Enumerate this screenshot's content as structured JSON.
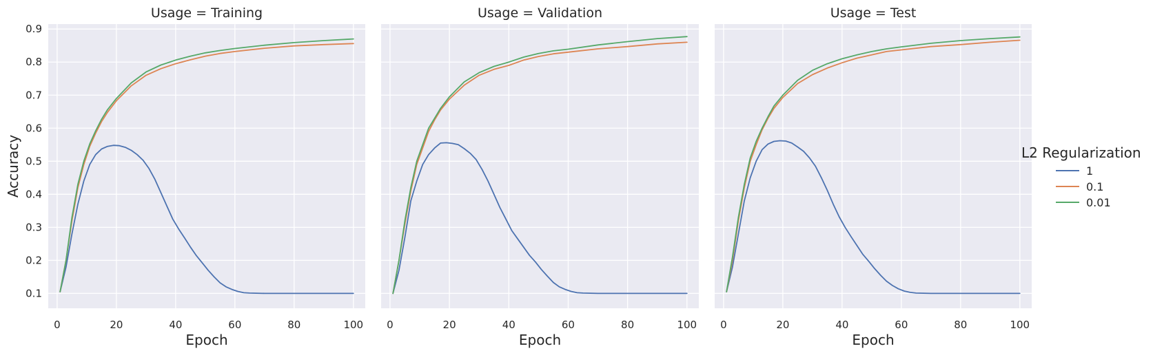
{
  "chart_data": {
    "type": "line",
    "facet_label": "Usage",
    "xlabel": "Epoch",
    "ylabel": "Accuracy",
    "xlim": [
      -3,
      104
    ],
    "ylim": [
      0.055,
      0.915
    ],
    "xticks": [
      0,
      20,
      40,
      60,
      80,
      100
    ],
    "yticks": [
      0.1,
      0.2,
      0.3,
      0.4,
      0.5,
      0.6,
      0.7,
      0.8,
      0.9
    ],
    "grid": true,
    "legend": {
      "title": "L2 Regularization",
      "placement": "right",
      "entries": [
        {
          "label": "1",
          "color": "#4c72b0"
        },
        {
          "label": "0.1",
          "color": "#dd8452"
        },
        {
          "label": "0.01",
          "color": "#55a868"
        }
      ]
    },
    "panels": [
      {
        "title": "Usage = Training",
        "series": [
          {
            "name": "1",
            "color": "#4c72b0",
            "x": [
              1,
              3,
              5,
              7,
              9,
              11,
              13,
              15,
              17,
              19,
              21,
              23,
              25,
              27,
              29,
              31,
              33,
              35,
              37,
              39,
              41,
              43,
              45,
              47,
              49,
              51,
              53,
              55,
              57,
              59,
              61,
              63,
              65,
              70,
              75,
              80,
              85,
              90,
              95,
              100
            ],
            "y": [
              0.105,
              0.18,
              0.28,
              0.37,
              0.44,
              0.49,
              0.52,
              0.537,
              0.545,
              0.548,
              0.547,
              0.542,
              0.533,
              0.52,
              0.503,
              0.478,
              0.445,
              0.405,
              0.365,
              0.325,
              0.295,
              0.268,
              0.24,
              0.214,
              0.192,
              0.17,
              0.15,
              0.132,
              0.12,
              0.112,
              0.106,
              0.102,
              0.101,
              0.1,
              0.1,
              0.1,
              0.1,
              0.1,
              0.1,
              0.1
            ]
          },
          {
            "name": "0.1",
            "color": "#dd8452",
            "x": [
              1,
              3,
              5,
              7,
              9,
              11,
              13,
              15,
              17,
              20,
              25,
              30,
              35,
              40,
              45,
              50,
              55,
              60,
              70,
              80,
              90,
              100
            ],
            "y": [
              0.105,
              0.2,
              0.32,
              0.42,
              0.49,
              0.545,
              0.585,
              0.62,
              0.648,
              0.683,
              0.728,
              0.76,
              0.78,
              0.795,
              0.807,
              0.818,
              0.826,
              0.832,
              0.842,
              0.849,
              0.853,
              0.856
            ]
          },
          {
            "name": "0.01",
            "color": "#55a868",
            "x": [
              1,
              3,
              5,
              7,
              9,
              11,
              13,
              15,
              17,
              20,
              25,
              30,
              35,
              40,
              45,
              50,
              55,
              60,
              70,
              80,
              90,
              100
            ],
            "y": [
              0.105,
              0.2,
              0.33,
              0.43,
              0.5,
              0.552,
              0.592,
              0.627,
              0.656,
              0.69,
              0.737,
              0.77,
              0.791,
              0.806,
              0.818,
              0.828,
              0.835,
              0.841,
              0.851,
              0.859,
              0.865,
              0.87
            ]
          }
        ]
      },
      {
        "title": "Usage = Validation",
        "series": [
          {
            "name": "1",
            "color": "#4c72b0",
            "x": [
              1,
              3,
              5,
              7,
              9,
              11,
              13,
              15,
              17,
              19,
              21,
              23,
              25,
              27,
              29,
              31,
              33,
              35,
              37,
              39,
              41,
              43,
              45,
              47,
              49,
              51,
              53,
              55,
              57,
              59,
              61,
              63,
              65,
              70,
              75,
              80,
              85,
              90,
              95,
              100
            ],
            "y": [
              0.1,
              0.17,
              0.27,
              0.38,
              0.44,
              0.49,
              0.52,
              0.54,
              0.555,
              0.556,
              0.554,
              0.55,
              0.538,
              0.524,
              0.505,
              0.475,
              0.44,
              0.4,
              0.36,
              0.325,
              0.29,
              0.265,
              0.24,
              0.215,
              0.195,
              0.172,
              0.152,
              0.133,
              0.12,
              0.112,
              0.106,
              0.102,
              0.101,
              0.1,
              0.1,
              0.1,
              0.1,
              0.1,
              0.1,
              0.1
            ]
          },
          {
            "name": "0.1",
            "color": "#dd8452",
            "x": [
              1,
              3,
              5,
              7,
              9,
              11,
              13,
              15,
              17,
              20,
              25,
              30,
              35,
              40,
              45,
              50,
              55,
              60,
              70,
              80,
              90,
              100
            ],
            "y": [
              0.1,
              0.2,
              0.31,
              0.41,
              0.49,
              0.54,
              0.59,
              0.625,
              0.655,
              0.688,
              0.73,
              0.76,
              0.778,
              0.79,
              0.806,
              0.817,
              0.825,
              0.83,
              0.84,
              0.847,
              0.855,
              0.86
            ]
          },
          {
            "name": "0.01",
            "color": "#55a868",
            "x": [
              1,
              3,
              5,
              7,
              9,
              11,
              13,
              15,
              17,
              20,
              25,
              30,
              35,
              40,
              45,
              50,
              55,
              60,
              70,
              80,
              90,
              100
            ],
            "y": [
              0.1,
              0.2,
              0.32,
              0.42,
              0.5,
              0.55,
              0.6,
              0.63,
              0.66,
              0.695,
              0.74,
              0.768,
              0.787,
              0.8,
              0.815,
              0.826,
              0.834,
              0.839,
              0.852,
              0.862,
              0.871,
              0.877
            ]
          }
        ]
      },
      {
        "title": "Usage = Test",
        "series": [
          {
            "name": "1",
            "color": "#4c72b0",
            "x": [
              1,
              3,
              5,
              7,
              9,
              11,
              13,
              15,
              17,
              19,
              21,
              23,
              25,
              27,
              29,
              31,
              33,
              35,
              37,
              39,
              41,
              43,
              45,
              47,
              49,
              51,
              53,
              55,
              57,
              59,
              61,
              63,
              65,
              70,
              75,
              80,
              85,
              90,
              95,
              100
            ],
            "y": [
              0.105,
              0.18,
              0.28,
              0.38,
              0.45,
              0.5,
              0.535,
              0.552,
              0.56,
              0.562,
              0.561,
              0.555,
              0.543,
              0.53,
              0.51,
              0.485,
              0.45,
              0.412,
              0.37,
              0.332,
              0.3,
              0.272,
              0.245,
              0.218,
              0.197,
              0.175,
              0.155,
              0.137,
              0.124,
              0.114,
              0.107,
              0.103,
              0.101,
              0.1,
              0.1,
              0.1,
              0.1,
              0.1,
              0.1,
              0.1
            ]
          },
          {
            "name": "0.1",
            "color": "#dd8452",
            "x": [
              1,
              3,
              5,
              7,
              9,
              11,
              13,
              15,
              17,
              20,
              25,
              30,
              35,
              40,
              45,
              50,
              55,
              60,
              70,
              80,
              90,
              100
            ],
            "y": [
              0.105,
              0.2,
              0.32,
              0.42,
              0.5,
              0.55,
              0.595,
              0.63,
              0.66,
              0.693,
              0.735,
              0.762,
              0.782,
              0.798,
              0.812,
              0.822,
              0.832,
              0.837,
              0.847,
              0.853,
              0.86,
              0.866
            ]
          },
          {
            "name": "0.01",
            "color": "#55a868",
            "x": [
              1,
              3,
              5,
              7,
              9,
              11,
              13,
              15,
              17,
              20,
              25,
              30,
              35,
              40,
              45,
              50,
              55,
              60,
              70,
              80,
              90,
              100
            ],
            "y": [
              0.105,
              0.21,
              0.33,
              0.43,
              0.51,
              0.56,
              0.6,
              0.635,
              0.667,
              0.7,
              0.745,
              0.775,
              0.795,
              0.81,
              0.822,
              0.832,
              0.84,
              0.846,
              0.857,
              0.865,
              0.871,
              0.876
            ]
          }
        ]
      }
    ]
  }
}
